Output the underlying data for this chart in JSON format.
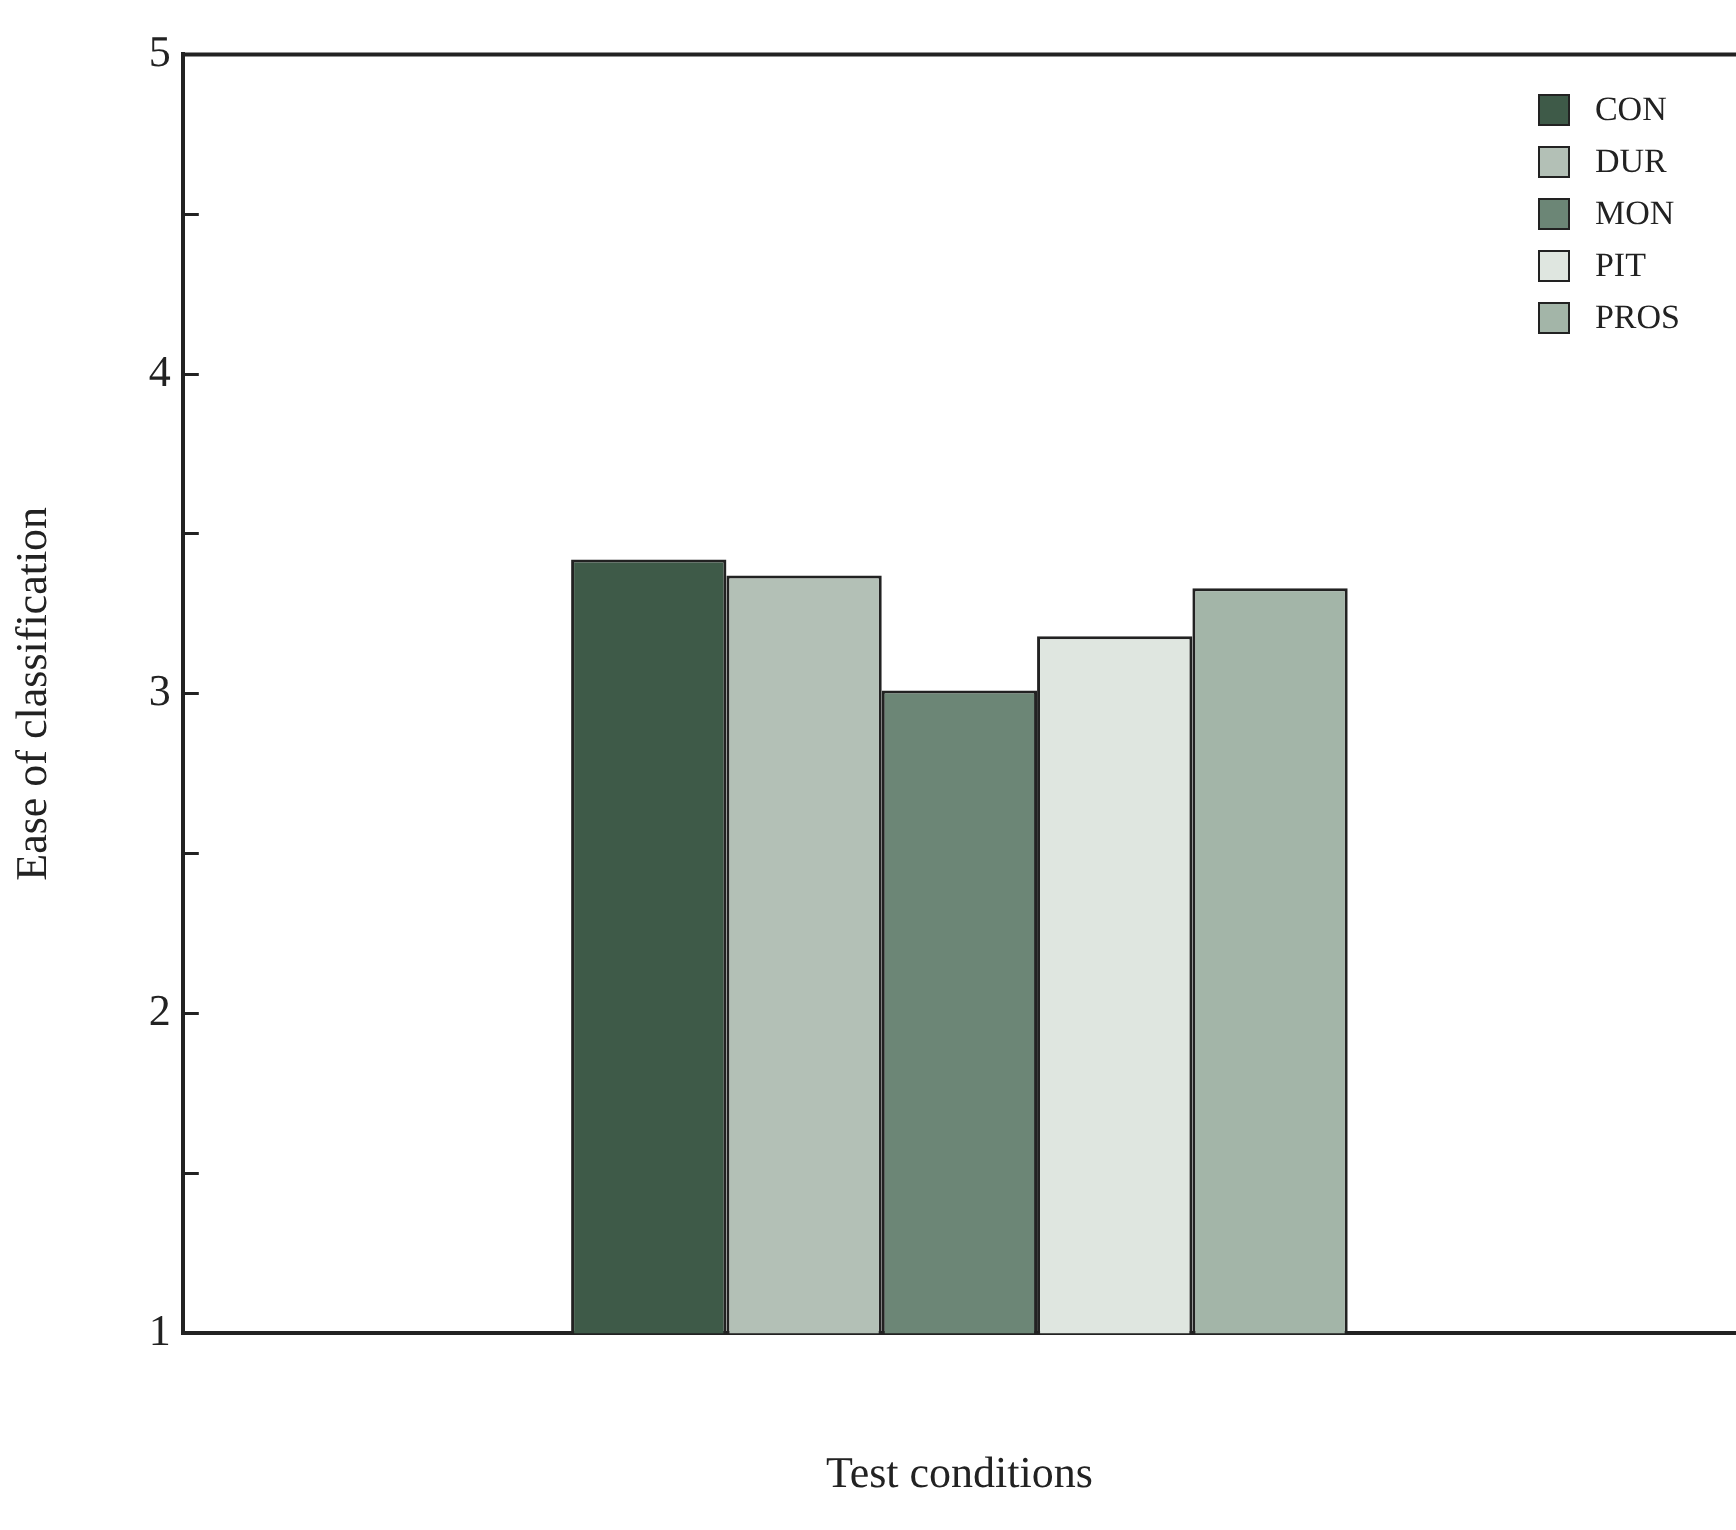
{
  "chart_data": {
    "type": "bar",
    "xlabel": "Test conditions",
    "ylabel": "Ease of classification",
    "categories": [
      null
    ],
    "series": [
      {
        "name": "CON",
        "color": "#3e5a48",
        "values": [
          3.42
        ]
      },
      {
        "name": "DUR",
        "color": "#b3c0b6",
        "values": [
          3.37
        ]
      },
      {
        "name": "MON",
        "color": "#6c8676",
        "values": [
          3.01
        ]
      },
      {
        "name": "PIT",
        "color": "#dfe6e0",
        "values": [
          3.18
        ]
      },
      {
        "name": "PROS",
        "color": "#a3b5a8",
        "values": [
          3.33
        ]
      }
    ],
    "ylim": [
      1,
      5
    ],
    "yticks": [
      1,
      {
        "value": 1.5,
        "label": null
      },
      2,
      {
        "value": 2.5,
        "label": null
      },
      3,
      {
        "value": 3.5,
        "label": null
      },
      4,
      {
        "value": 4.5,
        "label": null
      },
      5
    ],
    "grid": false,
    "legend": "top right"
  }
}
